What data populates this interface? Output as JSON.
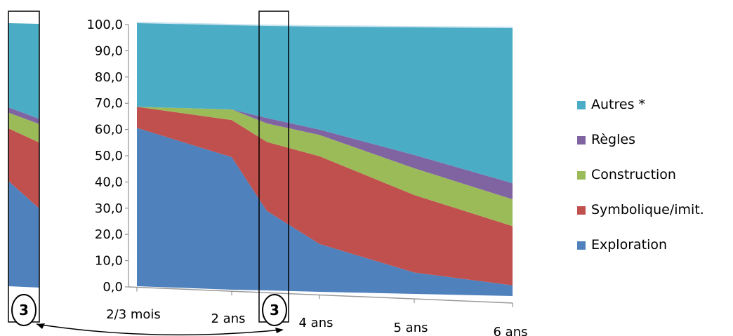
{
  "chart_data": {
    "type": "area",
    "stacked": true,
    "title": "",
    "xlabel": "",
    "ylabel": "",
    "categories": [
      "2/3 mois",
      "2 ans",
      "3",
      "4 ans",
      "5 ans",
      "6 ans"
    ],
    "ylim": [
      0,
      100
    ],
    "ytick_labels": [
      "0,0",
      "10,0",
      "20,0",
      "30,0",
      "40,0",
      "50,0",
      "60,0",
      "70,0",
      "80,0",
      "90,0",
      "100,0"
    ],
    "legend_position": "right",
    "series": [
      {
        "name": "Exploration",
        "color": "#4f81bd",
        "values": [
          60,
          50,
          30,
          18,
          8,
          4
        ]
      },
      {
        "name": "Symbolique/imit.",
        "color": "#c0504d",
        "values": [
          8,
          14,
          26,
          33,
          29,
          22
        ]
      },
      {
        "name": "Construction",
        "color": "#9bbb59",
        "values": [
          0,
          4,
          7,
          8,
          10,
          10
        ]
      },
      {
        "name": "Règles",
        "color": "#8064a2",
        "values": [
          0,
          0,
          2,
          2,
          5,
          6
        ]
      },
      {
        "name": "Autres *",
        "color": "#4bacc6",
        "values": [
          32,
          32,
          35,
          39,
          48,
          58
        ]
      }
    ],
    "legend_order": [
      "Autres *",
      "Règles",
      "Construction",
      "Symbolique/imit.",
      "Exploration"
    ],
    "callout_label": "3"
  }
}
